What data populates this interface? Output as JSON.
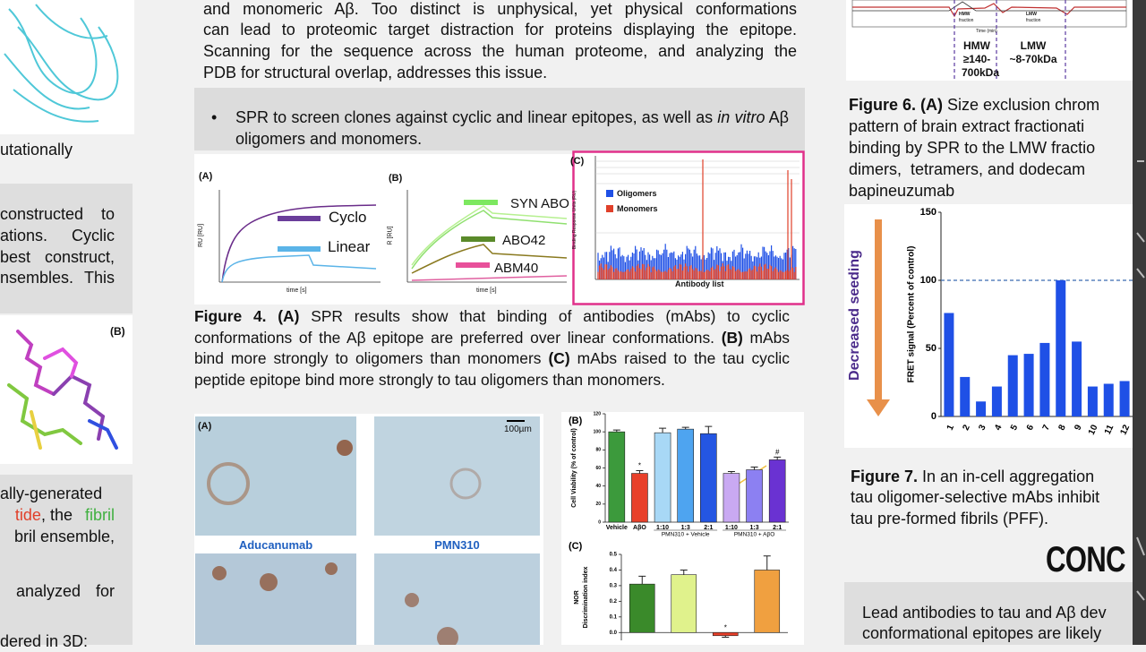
{
  "left": {
    "top_line": "utationally",
    "box1": [
      "constructed to",
      "ations. Cyclic",
      "best construct,",
      "nsembles. This"
    ],
    "panel_label": "(B)",
    "box2": {
      "l1": "ally-generated",
      "l2a": "tide",
      "l2b": ", the ",
      "l2c": "fibril",
      "l3": "bril ensemble,",
      "l4": "analyzed for",
      "l5": "dered in 3D:"
    }
  },
  "intro": [
    "and monomeric Aβ. Too distinct is unphysical, yet physical conformations",
    "can lead to proteomic target distraction for proteins displaying the epitope.",
    "Scanning for the sequence across the human proteome, and analyzing the",
    "PDB for structural overlap, addresses this issue."
  ],
  "bullet": [
    {
      "text": "SPR to screen clones against cyclic and linear epitopes, as well as "
    },
    {
      "text": "in vitro",
      "italic": true
    },
    {
      "text": " Aβ oligomers and monomers."
    }
  ],
  "figure4": {
    "panel_a": {
      "label": "(A)",
      "legend": [
        "Cyclo",
        "Linear"
      ],
      "x_label": "time [s]",
      "y_label": "RU [RU]"
    },
    "panel_b": {
      "label": "(B)",
      "legend": [
        "SYN ABO",
        "ABO42",
        "ABM40"
      ],
      "x_label": "time [s]",
      "y_label": "R [RU]"
    },
    "panel_c": {
      "label": "(C)",
      "legend": [
        "Oligomers",
        "Monomers"
      ],
      "x_label": "Antibody list",
      "y_label": "Binding Response Units (RU)"
    },
    "caption": [
      {
        "text": "Figure 4. (A)",
        "bold": true
      },
      {
        "text": " SPR results show that binding of antibodies (mAbs) to cyclic conformations of the Aβ epitope are preferred over linear conformations. "
      },
      {
        "text": "(B)",
        "bold": true
      },
      {
        "text": " mAbs bind more strongly to oligomers than monomers "
      },
      {
        "text": "(C)",
        "bold": true
      },
      {
        "text": " mAbs raised to the tau cyclic peptide epitope bind more strongly to tau oligomers than monomers."
      }
    ]
  },
  "figure5": {
    "label": "(A)",
    "scale": "100µm",
    "image_labels": [
      "Aducanumab",
      "PMN310"
    ]
  },
  "figure6": {
    "graph": {
      "fractions": [
        "HMW",
        "LMW"
      ],
      "fraction_word": "fraction",
      "axis": "Time (min)",
      "hmw": [
        "HMW",
        "≥140-",
        "700kDa"
      ],
      "lmw": [
        "LMW",
        "~8-70kDa"
      ]
    },
    "caption": {
      "lead": "Figure 6. (A)",
      "lines": [
        " Size exclusion chrom",
        "pattern of brain extract fractionati",
        "binding by SPR to the LMW fractio",
        "dimers,  tetramers, and dodecam",
        "bapineuzumab"
      ]
    }
  },
  "figure7": {
    "side_label": "Decreased seeding",
    "caption": {
      "lead": "Figure 7.",
      "lines": [
        " In an in-cell aggregation",
        "tau oligomer-selective mAbs inhibit",
        "tau pre-formed fibrils (PFF)."
      ]
    }
  },
  "conclusion": {
    "heading": "CONC",
    "lines": [
      "Lead antibodies to tau and Aβ dev",
      "conformational epitopes are likely"
    ]
  },
  "chart_data": [
    {
      "type": "bar",
      "label": "(B)",
      "y_label": "Cell Viability (% of control)",
      "categories": [
        "Vehicle",
        "AβO",
        "1:10",
        "1:3",
        "2:1",
        "1:10",
        "1:3",
        "2:1"
      ],
      "values": [
        100,
        54,
        99,
        103,
        98,
        54,
        58,
        69
      ],
      "errors": [
        2,
        3,
        5,
        2,
        8,
        2,
        3,
        3
      ],
      "colors": [
        "#3c9a3c",
        "#e8402a",
        "#a8d8f6",
        "#4ea4f0",
        "#2456e2",
        "#c9a9f2",
        "#8c80f2",
        "#6a32d2"
      ],
      "marks": [
        null,
        "*",
        null,
        null,
        null,
        null,
        null,
        "#"
      ],
      "groups": [
        {
          "label": null,
          "span": 2
        },
        {
          "label": "PMN310 + Vehicle",
          "span": 3
        },
        {
          "label": "PMN310 + AβO",
          "span": 3
        }
      ],
      "ylim": [
        0,
        120
      ],
      "yticks": [
        0,
        20,
        40,
        60,
        80,
        100,
        120
      ]
    },
    {
      "type": "bar",
      "label": "(C)",
      "y_label": [
        "NOR",
        "Discrimination index"
      ],
      "values": [
        0.31,
        0.37,
        -0.02,
        0.4
      ],
      "errors": [
        0.05,
        0.03,
        0.01,
        0.09
      ],
      "colors": [
        "#3a8a2a",
        "#e0f28c",
        "#e8402a",
        "#f0a040"
      ],
      "marks": [
        null,
        null,
        "*",
        null
      ],
      "ylim": [
        -0.05,
        0.5
      ],
      "yticks": [
        {
          "value": 0,
          "label": "0.0"
        },
        0.1,
        0.2,
        0.3,
        0.4,
        0.5
      ]
    },
    {
      "type": "bar",
      "y_label": "FRET signal (Percent of control)",
      "categories": [
        "1",
        "2",
        "3",
        "4",
        "5",
        "6",
        "7",
        "8",
        "9",
        "10",
        "11",
        "12"
      ],
      "values": [
        76,
        29,
        11,
        22,
        45,
        46,
        54,
        100,
        55,
        22,
        24,
        26
      ],
      "color": "#1f50e6",
      "reference_line": 100,
      "ylim": [
        0,
        150
      ],
      "yticks": [
        0,
        50,
        100,
        150
      ]
    }
  ]
}
